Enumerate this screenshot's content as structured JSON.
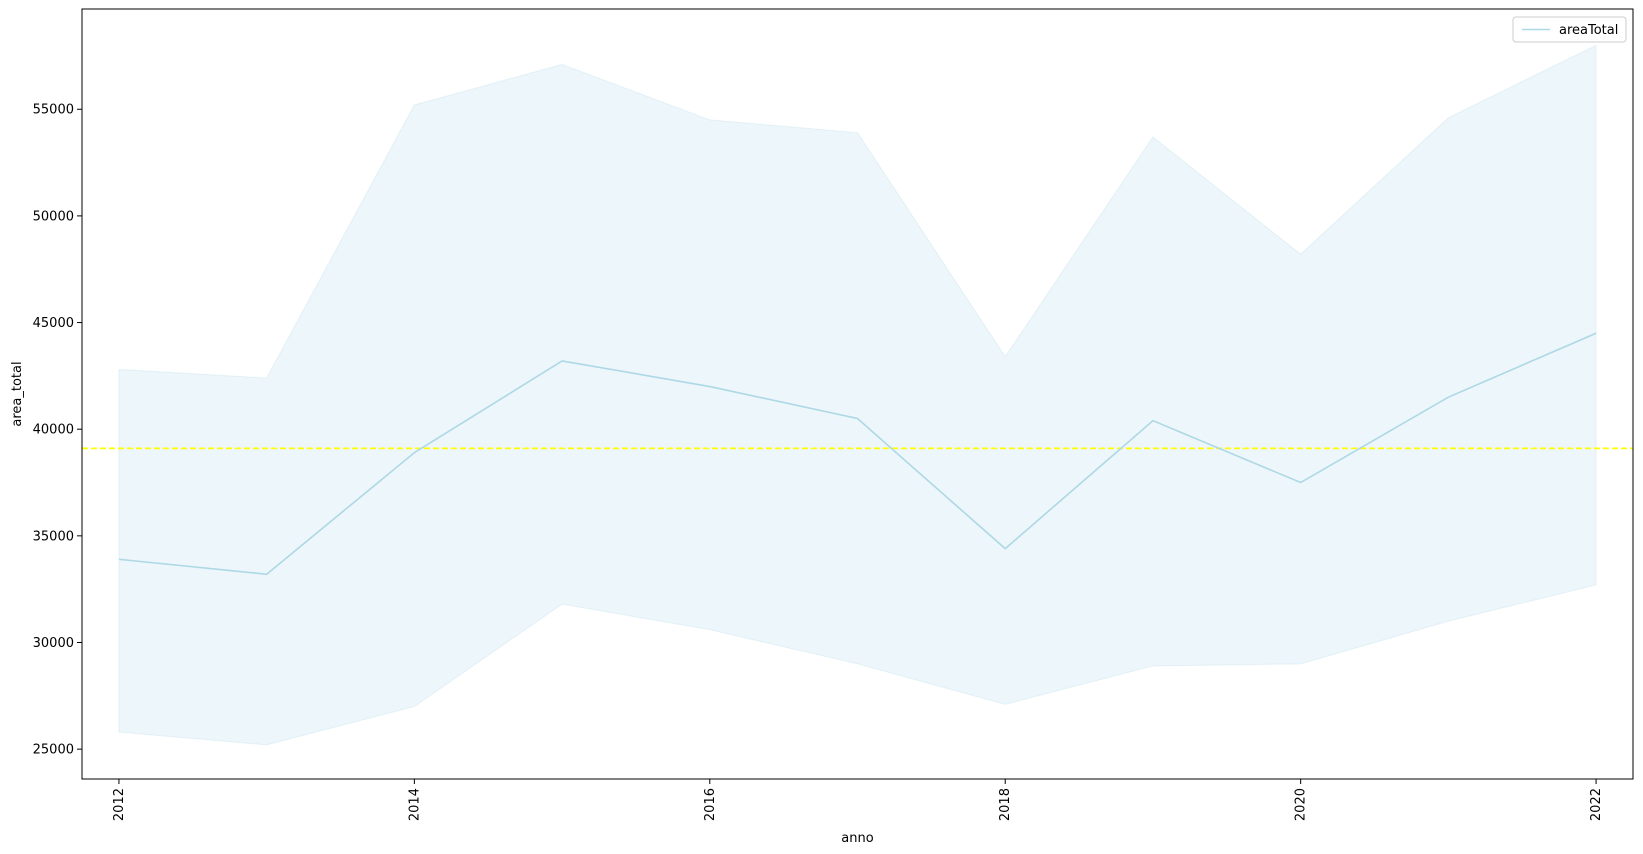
{
  "chart_data": {
    "type": "line",
    "title": "",
    "xlabel": "anno",
    "ylabel": "area_total",
    "x": [
      2012,
      2013,
      2014,
      2015,
      2016,
      2017,
      2018,
      2019,
      2020,
      2021,
      2022
    ],
    "series": [
      {
        "name": "areaTotal",
        "color": "#add8e6",
        "values": [
          33900,
          33200,
          38900,
          43200,
          42000,
          40500,
          34400,
          40400,
          37500,
          41500,
          44500
        ],
        "band_lower": [
          25800,
          25200,
          27000,
          31800,
          30600,
          29000,
          27100,
          28900,
          29000,
          31000,
          32700
        ],
        "band_upper": [
          42800,
          42400,
          55200,
          57100,
          54500,
          53900,
          43400,
          53700,
          48200,
          54600,
          58000
        ]
      }
    ],
    "reference_line": {
      "y": 39100,
      "color": "#ffff00",
      "style": "dashed"
    },
    "xticks": [
      2012,
      2014,
      2016,
      2018,
      2020,
      2022
    ],
    "yticks": [
      25000,
      30000,
      35000,
      40000,
      45000,
      50000,
      55000
    ],
    "xlim": [
      2011.75,
      2022.25
    ],
    "ylim": [
      23600,
      59700
    ],
    "legend_position": "top-right",
    "grid": false
  }
}
